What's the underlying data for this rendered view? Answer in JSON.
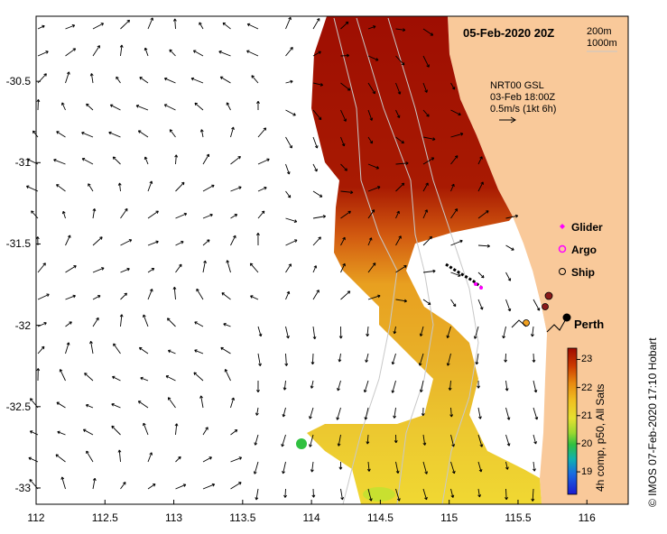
{
  "map": {
    "title": "05-Feb-2020 20Z",
    "depth_contours": [
      "200m",
      "1000m"
    ],
    "current_source": {
      "line1": "NRT00 GSL",
      "line2": "03-Feb 18:00Z",
      "line3": "0.5m/s (1kt 6h)"
    },
    "legend": {
      "glider": "Glider",
      "argo": "Argo",
      "ship": "Ship"
    },
    "city": "Perth",
    "credit": "© IMOS 07-Feb-2020 17:10 Hobart",
    "colorbar": {
      "label": "4h comp, p50, All Sats",
      "ticks": [
        23,
        22,
        21,
        20,
        19
      ],
      "min": 18.2,
      "max": 23.4
    },
    "axes": {
      "x_ticks": [
        "112",
        "112.5",
        "113",
        "113.5",
        "114",
        "114.5",
        "115",
        "115.5",
        "116"
      ],
      "y_ticks": [
        "-30.5",
        "-31",
        "-31.5",
        "-32",
        "-32.5",
        "-33"
      ],
      "x_range": [
        112,
        116.3
      ],
      "y_range": [
        -33.1,
        -30.1
      ]
    },
    "colors": {
      "land": "#f9c99a",
      "warm": "#9e0a00",
      "cool": "#1a1ad0",
      "glider": "#ff00ff",
      "ship": "#8b1a1a"
    }
  }
}
